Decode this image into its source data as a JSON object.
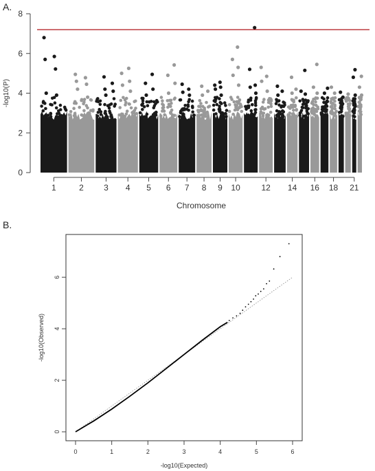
{
  "panel_a": {
    "label": "A.",
    "chart_data": {
      "type": "scatter",
      "subtype": "manhattan",
      "title": "",
      "xlabel": "Chromosome",
      "ylabel": "-log10(P)",
      "ylim": [
        0,
        8
      ],
      "y_ticks": [
        "0",
        "2",
        "4",
        "6",
        "8"
      ],
      "x_tick_labels": [
        "1",
        "2",
        "3",
        "4",
        "5",
        "6",
        "7",
        "8",
        "9",
        "10",
        "12",
        "14",
        "16",
        "18",
        "21"
      ],
      "x_tick_chromosomes": [
        1,
        2,
        3,
        4,
        5,
        6,
        7,
        8,
        9,
        10,
        12,
        14,
        16,
        18,
        21
      ],
      "chromosomes": [
        {
          "chr": 1,
          "color": "#1a1a1a",
          "max": 6.8,
          "points": [
            6.8,
            5.85,
            5.7,
            5.22,
            4.0,
            3.9
          ]
        },
        {
          "chr": 2,
          "color": "#999999",
          "max": 4.95,
          "points": [
            4.95,
            4.78,
            4.6,
            4.45,
            4.2,
            3.8
          ]
        },
        {
          "chr": 3,
          "color": "#1a1a1a",
          "max": 4.82,
          "points": [
            4.82,
            4.5,
            4.2,
            4.1,
            3.9
          ]
        },
        {
          "chr": 4,
          "color": "#999999",
          "max": 5.25,
          "points": [
            5.25,
            5.0,
            4.6,
            4.4,
            4.1
          ]
        },
        {
          "chr": 5,
          "color": "#1a1a1a",
          "max": 4.95,
          "points": [
            4.95,
            4.5,
            4.2,
            3.9
          ]
        },
        {
          "chr": 6,
          "color": "#999999",
          "max": 5.42,
          "points": [
            5.42,
            4.9,
            4.5,
            4.0
          ]
        },
        {
          "chr": 7,
          "color": "#1a1a1a",
          "max": 4.45,
          "points": [
            4.45,
            4.2,
            4.05,
            3.9
          ]
        },
        {
          "chr": 8,
          "color": "#999999",
          "max": 4.35,
          "points": [
            4.35,
            4.1,
            3.9
          ]
        },
        {
          "chr": 9,
          "color": "#1a1a1a",
          "max": 4.55,
          "points": [
            4.55,
            4.4,
            4.3,
            4.2,
            3.9
          ]
        },
        {
          "chr": 10,
          "color": "#999999",
          "max": 6.32,
          "points": [
            6.32,
            5.7,
            5.3,
            4.9,
            4.4
          ]
        },
        {
          "chr": 11,
          "color": "#1a1a1a",
          "max": 7.3,
          "points": [
            7.3,
            5.2,
            4.4,
            4.3,
            4.0
          ]
        },
        {
          "chr": 12,
          "color": "#999999",
          "max": 5.3,
          "points": [
            5.3,
            4.85,
            4.6,
            4.1
          ]
        },
        {
          "chr": 13,
          "color": "#1a1a1a",
          "max": 4.35,
          "points": [
            4.35,
            4.1,
            3.9
          ]
        },
        {
          "chr": 14,
          "color": "#999999",
          "max": 4.8,
          "points": [
            4.8,
            4.2,
            4.0
          ]
        },
        {
          "chr": 15,
          "color": "#1a1a1a",
          "max": 5.15,
          "points": [
            5.15,
            4.1,
            3.95
          ]
        },
        {
          "chr": 16,
          "color": "#999999",
          "max": 5.45,
          "points": [
            5.45,
            4.3,
            4.0
          ]
        },
        {
          "chr": 17,
          "color": "#1a1a1a",
          "max": 4.25,
          "points": [
            4.25,
            4.0
          ]
        },
        {
          "chr": 18,
          "color": "#999999",
          "max": 4.3,
          "points": [
            4.3,
            4.0
          ]
        },
        {
          "chr": 19,
          "color": "#1a1a1a",
          "max": 4.05,
          "points": [
            4.05,
            3.8
          ]
        },
        {
          "chr": 20,
          "color": "#999999",
          "max": 3.95,
          "points": [
            3.95,
            3.7
          ]
        },
        {
          "chr": 21,
          "color": "#1a1a1a",
          "max": 5.18,
          "points": [
            5.18,
            4.8,
            3.9
          ]
        },
        {
          "chr": 22,
          "color": "#999999",
          "max": 4.85,
          "points": [
            4.85,
            4.3,
            3.9
          ]
        }
      ],
      "chr_sizes": [
        249,
        243,
        198,
        191,
        181,
        171,
        159,
        146,
        141,
        136,
        135,
        134,
        115,
        107,
        102,
        90,
        83,
        78,
        59,
        63,
        48,
        51
      ],
      "bulk_top": 2.8,
      "significance_line": {
        "y": 7.2,
        "color": "#b0151a"
      },
      "colors": {
        "dark": "#1a1a1a",
        "light": "#999999",
        "sig_line": "#b0151a",
        "axis": "#444444"
      }
    }
  },
  "panel_b": {
    "label": "B.",
    "chart_data": {
      "type": "scatter",
      "subtype": "qq",
      "title": "",
      "xlabel": "-log10(Expected)",
      "ylabel": "-log10(Observed)",
      "xlim": [
        0,
        6
      ],
      "ylim": [
        0,
        7.5
      ],
      "x_ticks": [
        "0",
        "1",
        "2",
        "3",
        "4",
        "5",
        "6"
      ],
      "y_ticks": [
        "0",
        "2",
        "4",
        "6"
      ],
      "reference_line": {
        "slope": 1.0,
        "style": "dotted"
      },
      "curve": [
        [
          0,
          0
        ],
        [
          0.5,
          0.42
        ],
        [
          1,
          0.88
        ],
        [
          1.5,
          1.38
        ],
        [
          2,
          1.9
        ],
        [
          2.5,
          2.45
        ],
        [
          3,
          3.0
        ],
        [
          3.5,
          3.55
        ],
        [
          4,
          4.08
        ],
        [
          4.2,
          4.25
        ]
      ],
      "tail_points": [
        [
          4.25,
          4.32
        ],
        [
          4.35,
          4.42
        ],
        [
          4.45,
          4.5
        ],
        [
          4.55,
          4.6
        ],
        [
          4.62,
          4.72
        ],
        [
          4.7,
          4.85
        ],
        [
          4.78,
          4.95
        ],
        [
          4.85,
          5.05
        ],
        [
          4.92,
          5.15
        ],
        [
          4.98,
          5.28
        ],
        [
          5.05,
          5.35
        ],
        [
          5.12,
          5.45
        ],
        [
          5.2,
          5.55
        ],
        [
          5.28,
          5.75
        ],
        [
          5.36,
          5.85
        ],
        [
          5.48,
          6.32
        ],
        [
          5.65,
          6.8
        ],
        [
          5.9,
          7.3
        ]
      ],
      "colors": {
        "points": "#000000",
        "ref_line": "#888888",
        "frame": "#333333"
      }
    }
  }
}
